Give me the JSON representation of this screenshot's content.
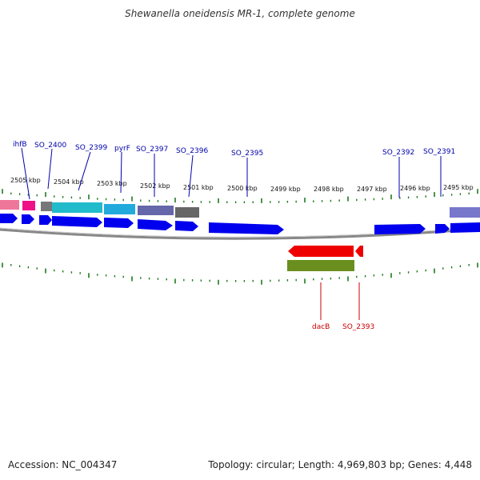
{
  "title": "Shewanella oneidensis MR-1, complete genome",
  "accession_label": "Accession: NC_004347",
  "stats_label": "Topology: circular; Length: 4,969,803 bp; Genes: 4,448",
  "colors": {
    "tick": "#1e7a1e",
    "backbone": "#8a8a8a",
    "gene_arrow": "#0000ee",
    "label_forward": "#0000aa",
    "label_reverse": "#cc0000",
    "reverse_arrow": "#ee0000",
    "reverse_feature": "#6a8f1e"
  },
  "scale_labels": [
    "2505 kbp",
    "2504 kbp",
    "2503 kbp",
    "2502 kbp",
    "2501 kbp",
    "2500 kbp",
    "2499 kbp",
    "2498 kbp",
    "2497 kbp",
    "2496 kbp",
    "2495 kbp"
  ],
  "gene_labels": {
    "ihfB": "ihfB",
    "SO_2400": "SO_2400",
    "SO_2399": "SO_2399",
    "pyrF": "pyrF",
    "SO_2397": "SO_2397",
    "SO_2396": "SO_2396",
    "SO_2395": "SO_2395",
    "SO_2392": "SO_2392",
    "SO_2391": "SO_2391",
    "dacB": "dacB",
    "SO_2393": "SO_2393"
  },
  "feature_colors": {
    "pink": "#ee7799",
    "magenta": "#ee1188",
    "gray": "#777777",
    "cyan": "#22bbcc",
    "cyan_light": "#22aadd",
    "slate": "#6666aa",
    "dark_gray": "#666666",
    "lavender": "#7777cc"
  }
}
